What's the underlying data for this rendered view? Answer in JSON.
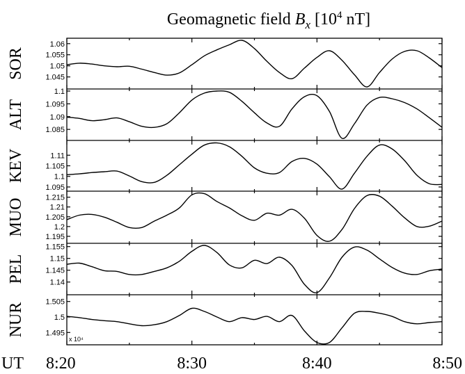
{
  "chart_data": {
    "type": "line",
    "title_prefix": "Geomagnetic field ",
    "title_var": "B",
    "title_sub": "x",
    "title_unit_open": " [10",
    "title_unit_exp": "4",
    "title_unit_close": " nT]",
    "x_axis_label": "UT",
    "x_ticks": [
      {
        "t": 20,
        "label": "8:20"
      },
      {
        "t": 30,
        "label": "8:30"
      },
      {
        "t": 40,
        "label": "8:40"
      },
      {
        "t": 50,
        "label": "8:50"
      }
    ],
    "xlim": [
      20,
      50
    ],
    "multiplier_label": "x 10⁴",
    "panels": [
      {
        "station": "SOR",
        "ylim": [
          1.0405,
          1.0615
        ],
        "yticks": [
          {
            "v": 1.045,
            "label": "1.045"
          },
          {
            "v": 1.05,
            "label": "1.05"
          },
          {
            "v": 1.055,
            "label": "1.055"
          },
          {
            "v": 1.06,
            "label": "1.06"
          }
        ],
        "x": [
          20,
          21,
          22,
          23,
          24,
          25,
          26,
          27,
          28,
          29,
          30,
          31,
          32,
          33,
          34,
          35,
          36,
          37,
          38,
          39,
          40,
          41,
          42,
          43,
          44,
          45,
          46,
          47,
          48,
          49,
          50
        ],
        "y": [
          1.0505,
          1.0512,
          1.0508,
          1.05,
          1.0496,
          1.0498,
          1.0485,
          1.047,
          1.0458,
          1.0468,
          1.0505,
          1.0545,
          1.0572,
          1.0595,
          1.0615,
          1.0578,
          1.052,
          1.047,
          1.0442,
          1.049,
          1.0538,
          1.0568,
          1.0525,
          1.046,
          1.0405,
          1.047,
          1.053,
          1.0565,
          1.0568,
          1.0535,
          1.0492
        ]
      },
      {
        "station": "ALT",
        "ylim": [
          1.0815,
          1.1
        ],
        "yticks": [
          {
            "v": 1.085,
            "label": "1.085"
          },
          {
            "v": 1.09,
            "label": "1.09"
          },
          {
            "v": 1.095,
            "label": "1.095"
          },
          {
            "v": 1.1,
            "label": "1.1"
          }
        ],
        "x": [
          20,
          21,
          22,
          23,
          24,
          25,
          26,
          27,
          28,
          29,
          30,
          31,
          32,
          33,
          34,
          35,
          36,
          37,
          38,
          39,
          40,
          41,
          42,
          43,
          44,
          45,
          46,
          47,
          48,
          49,
          50
        ],
        "y": [
          1.0898,
          1.0893,
          1.0884,
          1.0888,
          1.0895,
          1.088,
          1.0862,
          1.0858,
          1.0872,
          1.0915,
          1.0965,
          1.0992,
          1.1,
          1.0995,
          1.096,
          1.0915,
          1.0875,
          1.0862,
          1.093,
          1.0978,
          1.0982,
          1.092,
          1.0815,
          1.0872,
          1.0945,
          1.0975,
          1.097,
          1.0955,
          1.093,
          1.0895,
          1.0858
        ]
      },
      {
        "station": "KEV",
        "ylim": [
          1.094,
          1.116
        ],
        "yticks": [
          {
            "v": 1.095,
            "label": "1.095"
          },
          {
            "v": 1.1,
            "label": "1.1"
          },
          {
            "v": 1.105,
            "label": "1.105"
          },
          {
            "v": 1.11,
            "label": "1.11"
          }
        ],
        "x": [
          20,
          21,
          22,
          23,
          24,
          25,
          26,
          27,
          28,
          29,
          30,
          31,
          32,
          33,
          34,
          35,
          36,
          37,
          38,
          39,
          40,
          41,
          42,
          43,
          44,
          45,
          46,
          47,
          48,
          49,
          50
        ],
        "y": [
          1.1008,
          1.1012,
          1.1018,
          1.1022,
          1.1025,
          1.1002,
          1.0975,
          1.0972,
          1.1005,
          1.1055,
          1.1105,
          1.1148,
          1.1158,
          1.114,
          1.1095,
          1.104,
          1.1015,
          1.1018,
          1.107,
          1.1085,
          1.1058,
          1.0998,
          1.094,
          1.1015,
          1.1095,
          1.1148,
          1.113,
          1.1075,
          1.1005,
          1.0965,
          1.0962
        ]
      },
      {
        "station": "MUO",
        "ylim": [
          1.1925,
          1.217
        ],
        "yticks": [
          {
            "v": 1.195,
            "label": "1.195"
          },
          {
            "v": 1.2,
            "label": "1.2"
          },
          {
            "v": 1.205,
            "label": "1.205"
          },
          {
            "v": 1.21,
            "label": "1.21"
          },
          {
            "v": 1.215,
            "label": "1.215"
          }
        ],
        "x": [
          20,
          21,
          22,
          23,
          24,
          25,
          26,
          27,
          28,
          29,
          30,
          31,
          32,
          33,
          34,
          35,
          36,
          37,
          38,
          39,
          40,
          41,
          42,
          43,
          44,
          45,
          46,
          47,
          48,
          49,
          50
        ],
        "y": [
          1.2035,
          1.2058,
          1.2062,
          1.2048,
          1.2022,
          1.1995,
          1.1995,
          1.2028,
          1.2058,
          1.2095,
          1.2162,
          1.2168,
          1.2128,
          1.2095,
          1.2055,
          1.2032,
          1.2068,
          1.2058,
          1.2088,
          1.2042,
          1.1955,
          1.1925,
          1.1985,
          1.2092,
          1.2158,
          1.2155,
          1.2105,
          1.2045,
          1.2,
          1.2002,
          1.2028
        ]
      },
      {
        "station": "PEL",
        "ylim": [
          1.1355,
          1.1555
        ],
        "yticks": [
          {
            "v": 1.14,
            "label": "1.14"
          },
          {
            "v": 1.145,
            "label": "1.145"
          },
          {
            "v": 1.15,
            "label": "1.15"
          },
          {
            "v": 1.155,
            "label": "1.155"
          }
        ],
        "x": [
          20,
          21,
          22,
          23,
          24,
          25,
          26,
          27,
          28,
          29,
          30,
          31,
          32,
          33,
          34,
          35,
          36,
          37,
          38,
          39,
          40,
          41,
          42,
          43,
          44,
          45,
          46,
          47,
          48,
          49,
          50
        ],
        "y": [
          1.1475,
          1.148,
          1.1465,
          1.1448,
          1.1445,
          1.1432,
          1.1432,
          1.1445,
          1.146,
          1.1488,
          1.153,
          1.1555,
          1.1525,
          1.1472,
          1.146,
          1.1492,
          1.1478,
          1.1505,
          1.147,
          1.139,
          1.1355,
          1.1418,
          1.1505,
          1.1548,
          1.1535,
          1.1498,
          1.1462,
          1.1438,
          1.1432,
          1.1448,
          1.1455
        ]
      },
      {
        "station": "NUR",
        "ylim": [
          1.4917,
          1.5065
        ],
        "yticks": [
          {
            "v": 1.495,
            "label": "1.495"
          },
          {
            "v": 1.5,
            "label": "1.5"
          },
          {
            "v": 1.505,
            "label": "1.505"
          }
        ],
        "x": [
          20,
          21,
          22,
          23,
          24,
          25,
          26,
          27,
          28,
          29,
          30,
          31,
          32,
          33,
          34,
          35,
          36,
          37,
          38,
          39,
          40,
          41,
          42,
          43,
          44,
          45,
          46,
          47,
          48,
          49,
          50
        ],
        "y": [
          1.5002,
          1.4998,
          1.4992,
          1.4988,
          1.4985,
          1.4978,
          1.4972,
          1.4975,
          1.4985,
          1.5005,
          1.5028,
          1.5018,
          1.5,
          1.4985,
          1.4998,
          1.4992,
          1.5002,
          1.4985,
          1.5005,
          1.4955,
          1.4918,
          1.4918,
          1.4965,
          1.5012,
          1.5018,
          1.5012,
          1.5002,
          1.4985,
          1.4978,
          1.4982,
          1.4985
        ]
      }
    ]
  }
}
